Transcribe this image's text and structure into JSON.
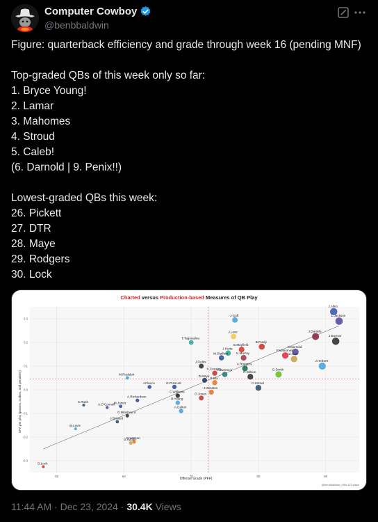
{
  "author": {
    "display_name": "Computer Cowboy",
    "handle": "@benbbaldwin",
    "verified": true,
    "verified_color": "#1d9bf0"
  },
  "tweet": {
    "lines": [
      "Figure: quarterback efficiency and grade through week 16 (pending MNF)",
      "",
      "Top-graded QBs of this week only so far:",
      "1. Bryce Young!",
      "2. Lamar",
      "3. Mahomes",
      "4. Stroud",
      "5. Caleb!",
      "(6. Darnold | 9. Penix!!)",
      "",
      "Lowest-graded QBs this week:",
      "26. Pickett",
      "27. DTR",
      "28. Maye",
      "29. Rodgers",
      "30. Lock"
    ]
  },
  "footer": {
    "time": "11:44 AM",
    "separator": "·",
    "date": "Dec 23, 2024",
    "views_count": "30.4K",
    "views_label": "Views"
  },
  "icons": {
    "avatar": "cowboy-avatar-icon",
    "verified": "verified-badge-icon",
    "grok": "grok-icon",
    "more": "more-icon"
  },
  "chart_data": {
    "type": "scatter",
    "title_parts": [
      {
        "text": "Charted",
        "color": "#d62728"
      },
      {
        "text": " versus ",
        "color": "#222222"
      },
      {
        "text": "Production-based",
        "color": "#d62728"
      },
      {
        "text": " Measures of QB Play",
        "color": "#222222"
      }
    ],
    "xlabel": "Offense Grade (PFF)",
    "ylabel": "EPA per play (passes, rushes, and penalties)",
    "xlim": [
      46,
      95
    ],
    "ylim": [
      -0.35,
      0.35
    ],
    "x_ticks": [
      "50",
      "60",
      "70",
      "80",
      "90"
    ],
    "y_ticks": [
      "-0.3",
      "-0.2",
      "-0.1",
      "0.0",
      "0.1",
      "0.2",
      "0.3"
    ],
    "ref_x": 72.5,
    "ref_y": 0.045,
    "trend": {
      "x": [
        48,
        92
      ],
      "y": [
        -0.25,
        0.27
      ]
    },
    "grid": true,
    "watermark": "@benbbaldwin | Min 113 plays",
    "points": [
      {
        "label": "J.Allen",
        "x": 91.2,
        "y": 0.33,
        "color": "#3b5bb7"
      },
      {
        "label": "L.Jackson",
        "x": 92.0,
        "y": 0.29,
        "color": "#5b4a9e"
      },
      {
        "label": "J.Goff",
        "x": 76.5,
        "y": 0.295,
        "color": "#4aa3df"
      },
      {
        "label": "J.Daniels",
        "x": 88.5,
        "y": 0.225,
        "color": "#8b2942"
      },
      {
        "label": "J.Burrow",
        "x": 91.5,
        "y": 0.205,
        "color": "#333333"
      },
      {
        "label": "J.Love",
        "x": 76.3,
        "y": 0.225,
        "color": "#f2c94c"
      },
      {
        "label": "T.Tagovailoa",
        "x": 70.0,
        "y": 0.2,
        "color": "#2fa89a"
      },
      {
        "label": "B.Purdy",
        "x": 80.5,
        "y": 0.182,
        "color": "#c8392b"
      },
      {
        "label": "B.Mayfield",
        "x": 77.5,
        "y": 0.17,
        "color": "#d63a2f"
      },
      {
        "label": "S.Darnold",
        "x": 85.5,
        "y": 0.16,
        "color": "#5b4a9e"
      },
      {
        "label": "P.Mahomes",
        "x": 84.0,
        "y": 0.145,
        "color": "#e0314b"
      },
      {
        "label": "J.Hurts",
        "x": 75.5,
        "y": 0.155,
        "color": "#2fa89a"
      },
      {
        "label": "M.Stafford",
        "x": 74.5,
        "y": 0.135,
        "color": "#2f4f9f"
      },
      {
        "label": "K.Murray",
        "x": 77.8,
        "y": 0.135,
        "color": "#a33b4a"
      },
      {
        "label": "D.Carr",
        "x": 85.3,
        "y": 0.13,
        "color": "#c9a44c"
      },
      {
        "label": "J.Herbert",
        "x": 89.5,
        "y": 0.1,
        "color": "#4aa3df"
      },
      {
        "label": "J.Fields",
        "x": 71.5,
        "y": 0.1,
        "color": "#333333"
      },
      {
        "label": "A.Rodgers",
        "x": 78.0,
        "y": 0.09,
        "color": "#1b6f4f"
      },
      {
        "label": "K.Cousins",
        "x": 73.5,
        "y": 0.07,
        "color": "#c43b3b"
      },
      {
        "label": "T.Lawrence",
        "x": 75.0,
        "y": 0.065,
        "color": "#2f7a7a"
      },
      {
        "label": "G.Smith",
        "x": 83.0,
        "y": 0.065,
        "color": "#69be28"
      },
      {
        "label": "R.Wilson",
        "x": 78.8,
        "y": 0.055,
        "color": "#333333"
      },
      {
        "label": "D.Maye",
        "x": 72.0,
        "y": 0.04,
        "color": "#1f3b6b"
      },
      {
        "label": "B.Nix",
        "x": 73.5,
        "y": 0.03,
        "color": "#e8792b"
      },
      {
        "label": "M.Rudolph",
        "x": 60.5,
        "y": 0.05,
        "color": "#4aa3df"
      },
      {
        "label": "J.Flacco",
        "x": 63.8,
        "y": 0.012,
        "color": "#2f4f9f"
      },
      {
        "label": "D.Prescott",
        "x": 67.5,
        "y": 0.012,
        "color": "#2f4f9f"
      },
      {
        "label": "C.Stroud",
        "x": 80.0,
        "y": 0.008,
        "color": "#2f4f6f"
      },
      {
        "label": "J.Winston",
        "x": 73.0,
        "y": -0.01,
        "color": "#e8792b"
      },
      {
        "label": "C.Williams",
        "x": 68.0,
        "y": -0.025,
        "color": "#2b2b2b"
      },
      {
        "label": "D.Jones",
        "x": 71.5,
        "y": -0.035,
        "color": "#c43b3b"
      },
      {
        "label": "A.Richardson",
        "x": 62.0,
        "y": -0.045,
        "color": "#2f4f9f"
      },
      {
        "label": "B.Young",
        "x": 68.0,
        "y": -0.055,
        "color": "#4aa3df"
      },
      {
        "label": "C.Rush",
        "x": 54.0,
        "y": -0.065,
        "color": "#2f4f6f"
      },
      {
        "label": "A.O'Connell",
        "x": 57.5,
        "y": -0.075,
        "color": "#5b4a9e"
      },
      {
        "label": "M.Jones",
        "x": 59.5,
        "y": -0.07,
        "color": "#2f4f9f"
      },
      {
        "label": "A.Dalton",
        "x": 68.5,
        "y": -0.09,
        "color": "#4aa3df"
      },
      {
        "label": "G.Minshew II",
        "x": 60.5,
        "y": -0.11,
        "color": "#333333"
      },
      {
        "label": "J.Brissett",
        "x": 59.0,
        "y": -0.135,
        "color": "#2f4f6f"
      },
      {
        "label": "W.Levis",
        "x": 52.8,
        "y": -0.165,
        "color": "#4aa3df"
      },
      {
        "label": "D.Watson",
        "x": 61.5,
        "y": -0.22,
        "color": "#e8792b"
      },
      {
        "label": "S.Rattler",
        "x": 61.0,
        "y": -0.225,
        "color": "#c9a44c"
      },
      {
        "label": "D.Lock",
        "x": 48.0,
        "y": -0.325,
        "color": "#c43b3b"
      }
    ]
  }
}
